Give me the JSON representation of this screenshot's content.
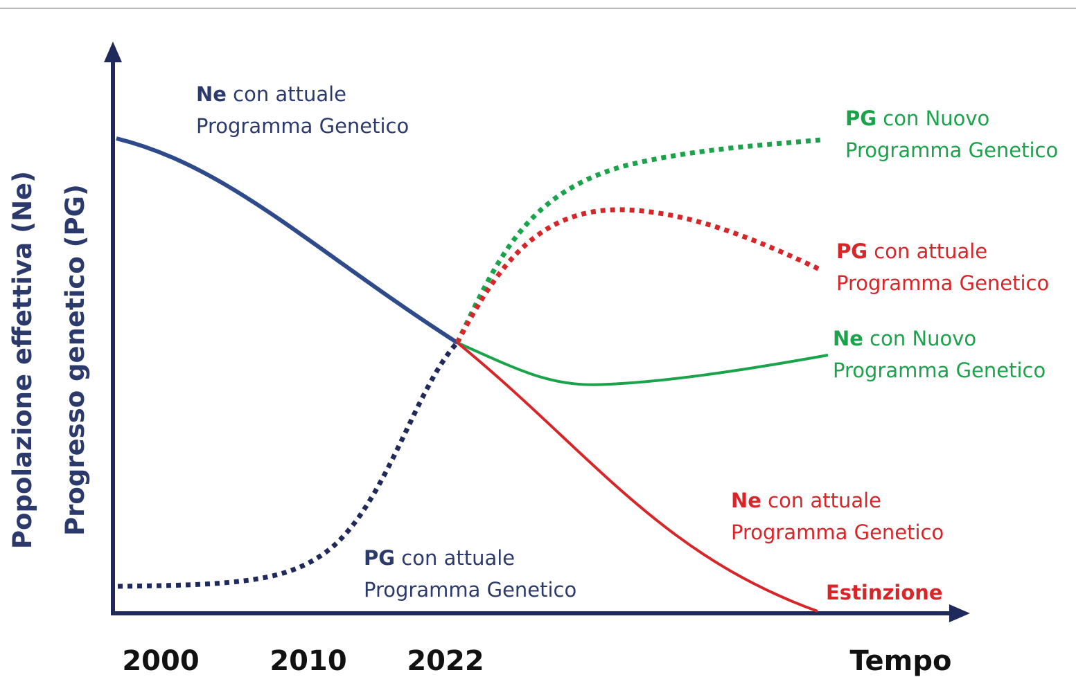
{
  "y_axis": {
    "labels": [
      "Popolazione effettiva (Ne)",
      "Progresso genetico (PG)"
    ]
  },
  "x_axis": {
    "labels": [
      "2000",
      "2010",
      "2022"
    ],
    "end_label": "Tempo"
  },
  "annotations": [
    {
      "bold": "Ne",
      "text": " con attuale",
      "line2": "Programma Genetico"
    },
    {
      "bold": "PG",
      "text": " con Nuovo",
      "line2": "Programma Genetico"
    },
    {
      "bold": "PG",
      "text": " con attuale",
      "line2": "Programma Genetico"
    },
    {
      "bold": "Ne",
      "text": " con Nuovo",
      "line2": "Programma Genetico"
    },
    {
      "bold": "Ne",
      "text": " con attuale",
      "line2": "Programma Genetico"
    },
    {
      "bold": "PG",
      "text": " con attuale",
      "line2": "Programma Genetico"
    }
  ],
  "end_label": "Estinzione"
}
